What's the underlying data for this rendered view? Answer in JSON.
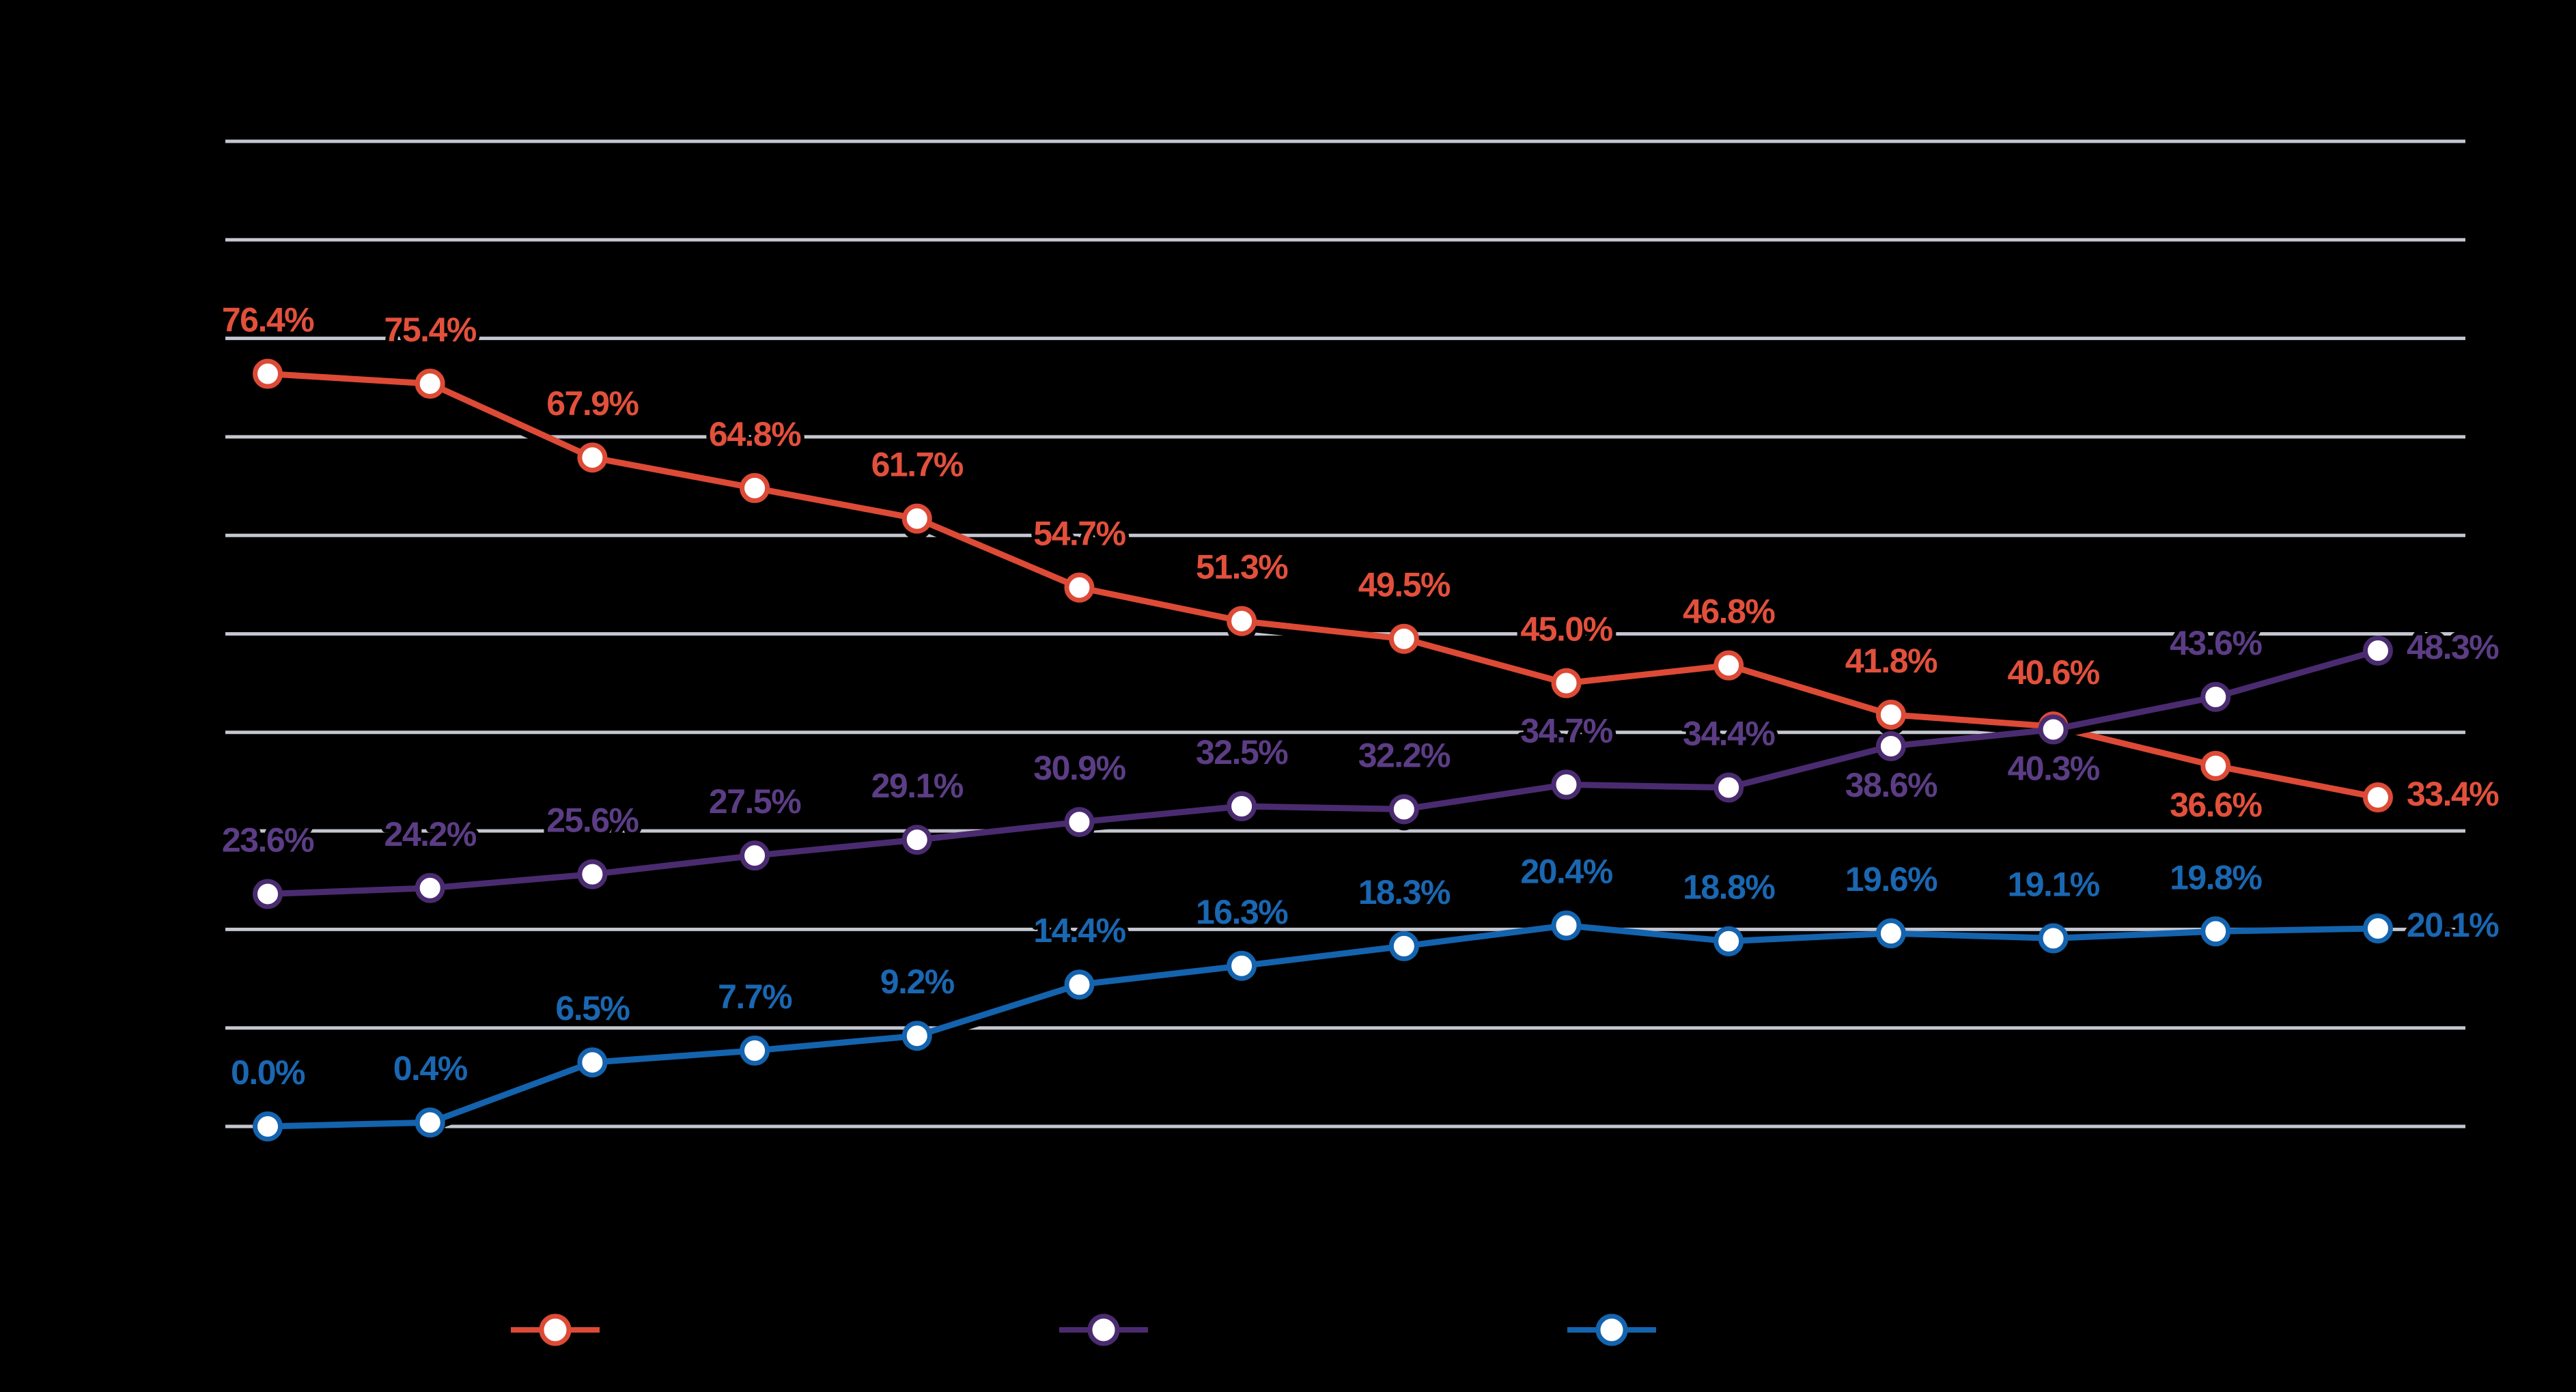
{
  "canvas": {
    "background": "#000000",
    "gridline_color": "#C4C6D0"
  },
  "chart_data": {
    "type": "line",
    "ylim": [
      0,
      100
    ],
    "y_grid_step": 10,
    "grid": "on",
    "legend_position": "bottom",
    "points_per_series": 14,
    "marker_style": "white-filled circle with colored ring and black drop shadow",
    "series": [
      {
        "name": "red-series",
        "line_color": "#DD4A36",
        "label_color": "#E2503C",
        "values": [
          76.4,
          75.4,
          67.9,
          64.8,
          61.7,
          54.7,
          51.3,
          49.5,
          45.0,
          46.8,
          41.8,
          40.6,
          36.6,
          33.4
        ],
        "labels": [
          "76.4%",
          "75.4%",
          "67.9%",
          "64.8%",
          "61.7%",
          "54.7%",
          "51.3%",
          "49.5%",
          "45.0%",
          "46.8%",
          "41.8%",
          "40.6%",
          "36.6%",
          "33.4%"
        ],
        "label_placements": [
          "above",
          "above",
          "above",
          "above",
          "above",
          "above",
          "above",
          "above",
          "above",
          "above",
          "above",
          "above",
          "below",
          "right"
        ]
      },
      {
        "name": "purple-series",
        "line_color": "#4A2B70",
        "label_color": "#5C3D85",
        "values": [
          23.6,
          24.2,
          25.6,
          27.5,
          29.1,
          30.9,
          32.5,
          32.2,
          34.7,
          34.4,
          38.6,
          40.3,
          43.6,
          48.3
        ],
        "labels": [
          "23.6%",
          "24.2%",
          "25.6%",
          "27.5%",
          "29.1%",
          "30.9%",
          "32.5%",
          "32.2%",
          "34.7%",
          "34.4%",
          "38.6%",
          "40.3%",
          "43.6%",
          "48.3%"
        ],
        "label_placements": [
          "above",
          "above",
          "above",
          "above",
          "above",
          "above",
          "above",
          "above",
          "above",
          "above",
          "below",
          "below",
          "above",
          "right"
        ]
      },
      {
        "name": "blue-series",
        "line_color": "#1463AE",
        "label_color": "#1A67B2",
        "values": [
          0.0,
          0.4,
          6.5,
          7.7,
          9.2,
          14.4,
          16.3,
          18.3,
          20.4,
          18.8,
          19.6,
          19.1,
          19.8,
          20.1
        ],
        "labels": [
          "0.0%",
          "0.4%",
          "6.5%",
          "7.7%",
          "9.2%",
          "14.4%",
          "16.3%",
          "18.3%",
          "20.4%",
          "18.8%",
          "19.6%",
          "19.1%",
          "19.8%",
          "20.1%"
        ],
        "label_placements": [
          "above",
          "above",
          "above",
          "above",
          "above",
          "above",
          "above",
          "above",
          "above",
          "above",
          "above",
          "above",
          "above",
          "right"
        ]
      }
    ],
    "legend": {
      "items": [
        {
          "series": "red-series",
          "marker_color": "#DD4A36"
        },
        {
          "series": "purple-series",
          "marker_color": "#4A2B70"
        },
        {
          "series": "blue-series",
          "marker_color": "#1463AE"
        }
      ]
    }
  }
}
